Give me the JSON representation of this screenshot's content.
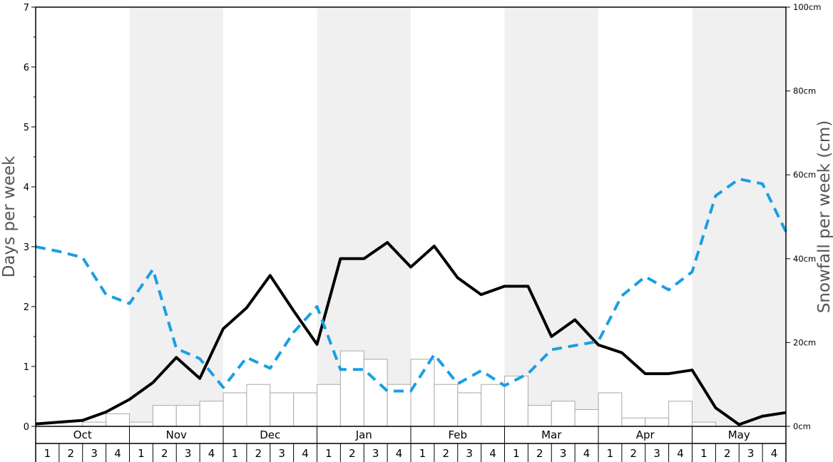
{
  "chart_data": {
    "type": "bar",
    "ylabel_left": "Days per week",
    "ylabel_right": "Snowfall per week (cm)",
    "ylim_left": [
      0,
      7
    ],
    "ylim_right": [
      0,
      100
    ],
    "left_ticks": [
      "0",
      "1",
      "2",
      "3",
      "4",
      "5",
      "6",
      "7"
    ],
    "right_ticks": [
      "0cm",
      "20cm",
      "40cm",
      "60cm",
      "80cm",
      "100cm"
    ],
    "months": [
      "Oct",
      "Nov",
      "Dec",
      "Jan",
      "Feb",
      "Mar",
      "Apr",
      "May"
    ],
    "shaded_months": [
      "Nov",
      "Jan",
      "Mar",
      "May"
    ],
    "week_labels": [
      "1",
      "2",
      "3",
      "4"
    ],
    "grid": false,
    "colors": {
      "solid_line": "#000000",
      "dashed_line": "#1a9ee3",
      "bar_fill": "#ffffff",
      "bar_edge": "#a9a9a9",
      "shade": "#f0f0f0"
    },
    "series": [
      {
        "type": "bar",
        "axis": "right",
        "unit": "cm",
        "values": [
          0,
          0,
          1,
          3,
          1,
          5,
          5,
          6,
          8,
          10,
          8,
          8,
          10,
          18,
          16,
          10,
          16,
          10,
          8,
          10,
          12,
          5,
          6,
          4,
          8,
          2,
          2,
          6,
          1,
          0,
          0,
          0
        ]
      },
      {
        "type": "line",
        "style": "solid",
        "axis": "left",
        "values": [
          0.04,
          0.07,
          0.1,
          0.24,
          0.45,
          0.73,
          1.15,
          0.8,
          1.63,
          1.98,
          2.52,
          1.93,
          1.37,
          2.8,
          2.8,
          3.07,
          2.66,
          3.01,
          2.48,
          2.2,
          2.34,
          2.34,
          1.5,
          1.78,
          1.36,
          1.23,
          0.88,
          0.88,
          0.94,
          0.31,
          0.03,
          0.17,
          0.23
        ]
      },
      {
        "type": "line",
        "style": "dashed",
        "axis": "left",
        "values": [
          3.0,
          2.92,
          2.82,
          2.2,
          2.05,
          2.62,
          1.3,
          1.13,
          0.65,
          1.15,
          0.97,
          1.57,
          2.0,
          0.95,
          0.95,
          0.59,
          0.59,
          1.2,
          0.71,
          0.93,
          0.68,
          0.88,
          1.28,
          1.35,
          1.42,
          2.18,
          2.5,
          2.28,
          2.58,
          3.85,
          4.13,
          4.05,
          3.25
        ]
      }
    ]
  }
}
